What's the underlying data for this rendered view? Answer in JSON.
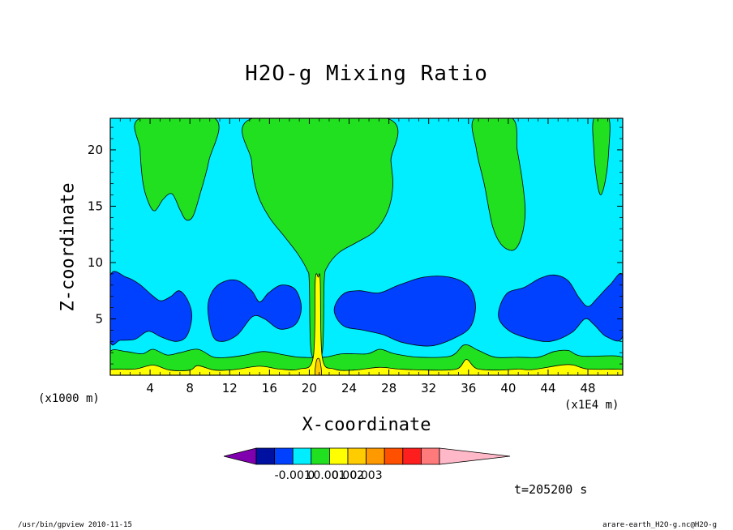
{
  "title": "H2O-g Mixing Ratio",
  "footer": {
    "left": "/usr/bin/gpview   2010-11-15",
    "right": "arare-earth_H2O-g.nc@H2O-g"
  },
  "time_label": "t=205200 s",
  "chart_data": {
    "type": "heatmap",
    "title": "H2O-g Mixing Ratio",
    "xlabel": "X-coordinate",
    "ylabel": "Z-coordinate",
    "x_unit_left": "(x1000 m)",
    "x_unit_right": "(x1E4 m)",
    "xlim": [
      0,
      51.5
    ],
    "ylim": [
      0,
      22.8
    ],
    "x_ticks": [
      4,
      8,
      12,
      16,
      20,
      24,
      28,
      32,
      36,
      40,
      44,
      48
    ],
    "x_tick_labels": [
      "4",
      "8",
      "12",
      "16",
      "20",
      "24",
      "28",
      "32",
      "36",
      "40",
      "44",
      "48"
    ],
    "y_ticks": [
      5,
      10,
      15,
      20
    ],
    "y_tick_labels": [
      "5",
      "10",
      "15",
      "20"
    ],
    "grid": false,
    "background_level_color": "#00eeff",
    "colorbar": {
      "colors": [
        "#8000b0",
        "#0010a0",
        "#0040ff",
        "#00eeff",
        "#20e020",
        "#ffff00",
        "#ffcc00",
        "#ff9900",
        "#ff5000",
        "#ff1e1e",
        "#ff7a7a",
        "#ffb8c8"
      ],
      "labels": [
        "-0.001",
        "0",
        "0.001",
        "0.002",
        "0.003"
      ],
      "label_boundaries": [
        3,
        4,
        5,
        6,
        7
      ]
    },
    "regions": [
      {
        "name": "upper green plume left",
        "color": "#20e020",
        "outline": [
          [
            3,
            22.8
          ],
          [
            3,
            20
          ],
          [
            3.3,
            17
          ],
          [
            3.9,
            15.2
          ],
          [
            4.5,
            14.6
          ],
          [
            5.3,
            15.6
          ],
          [
            6.2,
            16.1
          ],
          [
            7,
            14.7
          ],
          [
            7.6,
            13.8
          ],
          [
            8.3,
            14.1
          ],
          [
            9,
            16
          ],
          [
            9.9,
            19
          ],
          [
            10.5,
            22.8
          ]
        ]
      },
      {
        "name": "central green column",
        "color": "#20e020",
        "outline": [
          [
            14.3,
            22.8
          ],
          [
            14.2,
            19
          ],
          [
            14.8,
            16.1
          ],
          [
            16,
            14
          ],
          [
            17.6,
            12.2
          ],
          [
            18.9,
            10.7
          ],
          [
            19.8,
            9.3
          ],
          [
            20,
            8.3
          ],
          [
            20.2,
            2
          ],
          [
            21.3,
            2
          ],
          [
            21.5,
            8.3
          ],
          [
            21.8,
            9.6
          ],
          [
            23,
            10.9
          ],
          [
            24.8,
            11.8
          ],
          [
            26.6,
            12.8
          ],
          [
            27.9,
            14.6
          ],
          [
            28.4,
            16.8
          ],
          [
            28.2,
            19
          ],
          [
            27.8,
            22.8
          ]
        ]
      },
      {
        "name": "upper green plume right",
        "color": "#20e020",
        "outline": [
          [
            36.6,
            22.8
          ],
          [
            36.8,
            20
          ],
          [
            37.6,
            16.9
          ],
          [
            38.4,
            13.3
          ],
          [
            39.3,
            11.6
          ],
          [
            40.5,
            11.1
          ],
          [
            41.3,
            12.2
          ],
          [
            41.7,
            14.5
          ],
          [
            41.4,
            17.3
          ],
          [
            40.9,
            20
          ],
          [
            40.4,
            22.8
          ]
        ]
      },
      {
        "name": "upper green plume edge",
        "color": "#20e020",
        "outline": [
          [
            48.6,
            22.8
          ],
          [
            48.6,
            20
          ],
          [
            48.9,
            17.3
          ],
          [
            49.3,
            16
          ],
          [
            49.8,
            17.5
          ],
          [
            50.1,
            20
          ],
          [
            50.1,
            22.8
          ]
        ]
      },
      {
        "name": "blue band left",
        "color": "#0040ff",
        "outline": [
          [
            0,
            8.8
          ],
          [
            1.6,
            8.7
          ],
          [
            2.9,
            8.1
          ],
          [
            4.2,
            7.1
          ],
          [
            5.1,
            6.6
          ],
          [
            6.1,
            7
          ],
          [
            6.9,
            7.5
          ],
          [
            7.7,
            6.8
          ],
          [
            8.2,
            5.3
          ],
          [
            7.7,
            3.5
          ],
          [
            6.6,
            3
          ],
          [
            5.1,
            3.4
          ],
          [
            3.8,
            3.9
          ],
          [
            2.5,
            3.2
          ],
          [
            1,
            3.1
          ],
          [
            0,
            3.1
          ]
        ]
      },
      {
        "name": "blue pocket middle-left",
        "color": "#0040ff",
        "outline": [
          [
            9.8,
            6
          ],
          [
            10.3,
            7.5
          ],
          [
            11.4,
            8.3
          ],
          [
            12.8,
            8.4
          ],
          [
            14.2,
            7.5
          ],
          [
            15,
            6.5
          ],
          [
            15.9,
            7.3
          ],
          [
            17.2,
            8
          ],
          [
            18.6,
            7.6
          ],
          [
            19.2,
            6
          ],
          [
            18.6,
            4.5
          ],
          [
            17,
            4.1
          ],
          [
            15.5,
            5
          ],
          [
            14.3,
            5.2
          ],
          [
            12.8,
            3.6
          ],
          [
            11.3,
            3
          ],
          [
            10.3,
            3.5
          ]
        ]
      },
      {
        "name": "blue pocket center-right",
        "color": "#0040ff",
        "outline": [
          [
            22.5,
            5.8
          ],
          [
            23.4,
            7.2
          ],
          [
            25,
            7.5
          ],
          [
            27,
            7.3
          ],
          [
            29,
            8
          ],
          [
            31.5,
            8.7
          ],
          [
            34.1,
            8.7
          ],
          [
            36,
            7.9
          ],
          [
            36.7,
            6.2
          ],
          [
            36.2,
            4.3
          ],
          [
            34.6,
            3.3
          ],
          [
            32.2,
            2.6
          ],
          [
            29.4,
            2.9
          ],
          [
            27.4,
            3.6
          ],
          [
            25.4,
            4
          ],
          [
            23.4,
            4.4
          ]
        ]
      },
      {
        "name": "blue pocket right",
        "color": "#0040ff",
        "outline": [
          [
            39,
            5.3
          ],
          [
            39.8,
            7.2
          ],
          [
            41.6,
            7.8
          ],
          [
            43.2,
            8.6
          ],
          [
            44.6,
            8.9
          ],
          [
            46,
            8.4
          ],
          [
            47.1,
            6.9
          ],
          [
            48,
            6.1
          ],
          [
            48.9,
            6.8
          ],
          [
            50.2,
            8
          ],
          [
            51.5,
            8.8
          ],
          [
            51.5,
            3.5
          ],
          [
            49.9,
            3.4
          ],
          [
            48.6,
            4.5
          ],
          [
            47.7,
            5
          ],
          [
            46.4,
            3.8
          ],
          [
            44.2,
            3
          ],
          [
            41.9,
            3.3
          ],
          [
            40,
            4
          ]
        ]
      },
      {
        "name": "lower green band",
        "color": "#20e020",
        "outline": [
          [
            0,
            0
          ],
          [
            0,
            2.1
          ],
          [
            1.6,
            2.1
          ],
          [
            3.2,
            1.9
          ],
          [
            4.3,
            2.3
          ],
          [
            5.7,
            1.8
          ],
          [
            7,
            2
          ],
          [
            8.8,
            2.3
          ],
          [
            10.4,
            1.6
          ],
          [
            12,
            1.6
          ],
          [
            13.6,
            1.8
          ],
          [
            15.4,
            2.1
          ],
          [
            17.5,
            1.8
          ],
          [
            19,
            1.6
          ],
          [
            21.5,
            1.6
          ],
          [
            23.3,
            1.9
          ],
          [
            25.8,
            1.9
          ],
          [
            27.1,
            2.3
          ],
          [
            28.6,
            1.9
          ],
          [
            31,
            1.6
          ],
          [
            34.2,
            1.7
          ],
          [
            35.6,
            2.7
          ],
          [
            37,
            2.2
          ],
          [
            38.7,
            1.6
          ],
          [
            41,
            1.6
          ],
          [
            43,
            1.6
          ],
          [
            44.6,
            2.1
          ],
          [
            46,
            2.2
          ],
          [
            47.4,
            1.7
          ],
          [
            51.5,
            1.6
          ],
          [
            51.5,
            0
          ]
        ]
      },
      {
        "name": "surface yellow layer",
        "color": "#ffff00",
        "outline": [
          [
            0,
            0
          ],
          [
            0,
            0.5
          ],
          [
            2.5,
            0.55
          ],
          [
            4.3,
            0.9
          ],
          [
            6,
            0.45
          ],
          [
            8,
            0.45
          ],
          [
            8.8,
            0.85
          ],
          [
            10.5,
            0.45
          ],
          [
            12.5,
            0.5
          ],
          [
            15,
            0.8
          ],
          [
            17,
            0.55
          ],
          [
            19,
            0.55
          ],
          [
            20.4,
            1.6
          ],
          [
            20.6,
            8.4
          ],
          [
            20.9,
            8.7
          ],
          [
            21.1,
            8.4
          ],
          [
            21.3,
            1.6
          ],
          [
            22.5,
            0.55
          ],
          [
            24.5,
            0.45
          ],
          [
            27,
            0.7
          ],
          [
            29,
            0.55
          ],
          [
            32,
            0.45
          ],
          [
            34.8,
            0.55
          ],
          [
            35.8,
            1.4
          ],
          [
            36.8,
            0.6
          ],
          [
            39,
            0.45
          ],
          [
            41,
            0.55
          ],
          [
            42.5,
            0.5
          ],
          [
            46,
            0.95
          ],
          [
            48,
            0.55
          ],
          [
            51.5,
            0.5
          ],
          [
            51.5,
            0
          ]
        ]
      },
      {
        "name": "surface orange spot",
        "color": "#ffcc00",
        "outline": [
          [
            20.6,
            0
          ],
          [
            20.7,
            1.2
          ],
          [
            20.9,
            1.5
          ],
          [
            21.1,
            1.2
          ],
          [
            21.2,
            0
          ]
        ]
      }
    ]
  }
}
